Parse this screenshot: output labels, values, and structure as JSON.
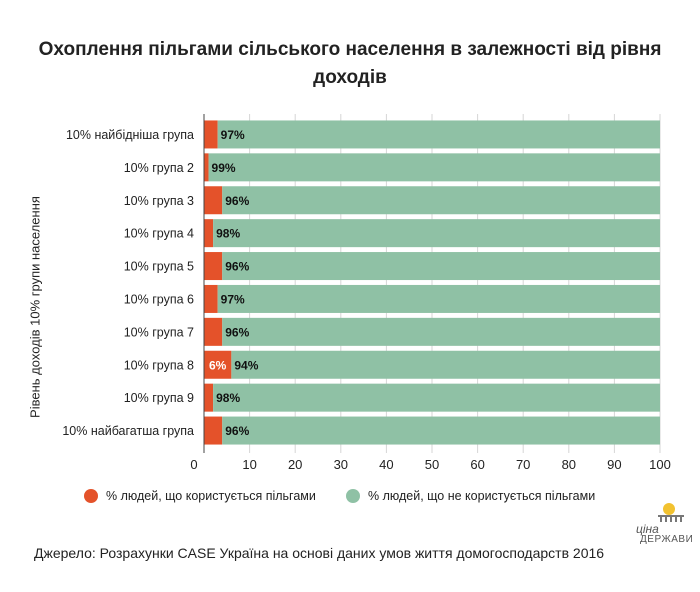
{
  "chart_data": {
    "type": "bar",
    "orientation": "horizontal",
    "stacked": true,
    "title": "Охоплення пільгами сільського населення в залежності від рівня доходів",
    "ylabel": "Рівень доходів 10% групи населення",
    "xlabel": "",
    "xlim": [
      0,
      100
    ],
    "xticks": [
      0,
      10,
      20,
      30,
      40,
      50,
      60,
      70,
      80,
      90,
      100
    ],
    "categories": [
      "10% найбідніша група",
      "10% група 2",
      "10% група 3",
      "10% група 4",
      "10% група 5",
      "10% група 6",
      "10% група 7",
      "10% група 8",
      "10% група 9",
      "10% найбагатша група"
    ],
    "series": [
      {
        "name": "% людей, що користується пільгами",
        "color": "#e4522a",
        "values": [
          3,
          1,
          4,
          2,
          4,
          3,
          4,
          6,
          2,
          4
        ],
        "labels": [
          "",
          "",
          "",
          "",
          "",
          "",
          "",
          "6%",
          "",
          ""
        ]
      },
      {
        "name": "% людей, що не користується пільгами",
        "color": "#8fc1a5",
        "values": [
          97,
          99,
          96,
          98,
          96,
          97,
          96,
          94,
          98,
          96
        ],
        "labels": [
          "97%",
          "99%",
          "96%",
          "98%",
          "96%",
          "97%",
          "96%",
          "94%",
          "98%",
          "96%"
        ]
      }
    ],
    "grid": true,
    "legend_position": "bottom"
  },
  "legend": {
    "item1": "% людей, що користується пільгами",
    "item2": "% людей, що не користується пільгами"
  },
  "logo": {
    "top": "ціна",
    "bottom": "ДЕРЖАВИ"
  },
  "source": "Джерело: Розрахунки CASE Україна на основі даних умов життя домогосподарств 2016"
}
